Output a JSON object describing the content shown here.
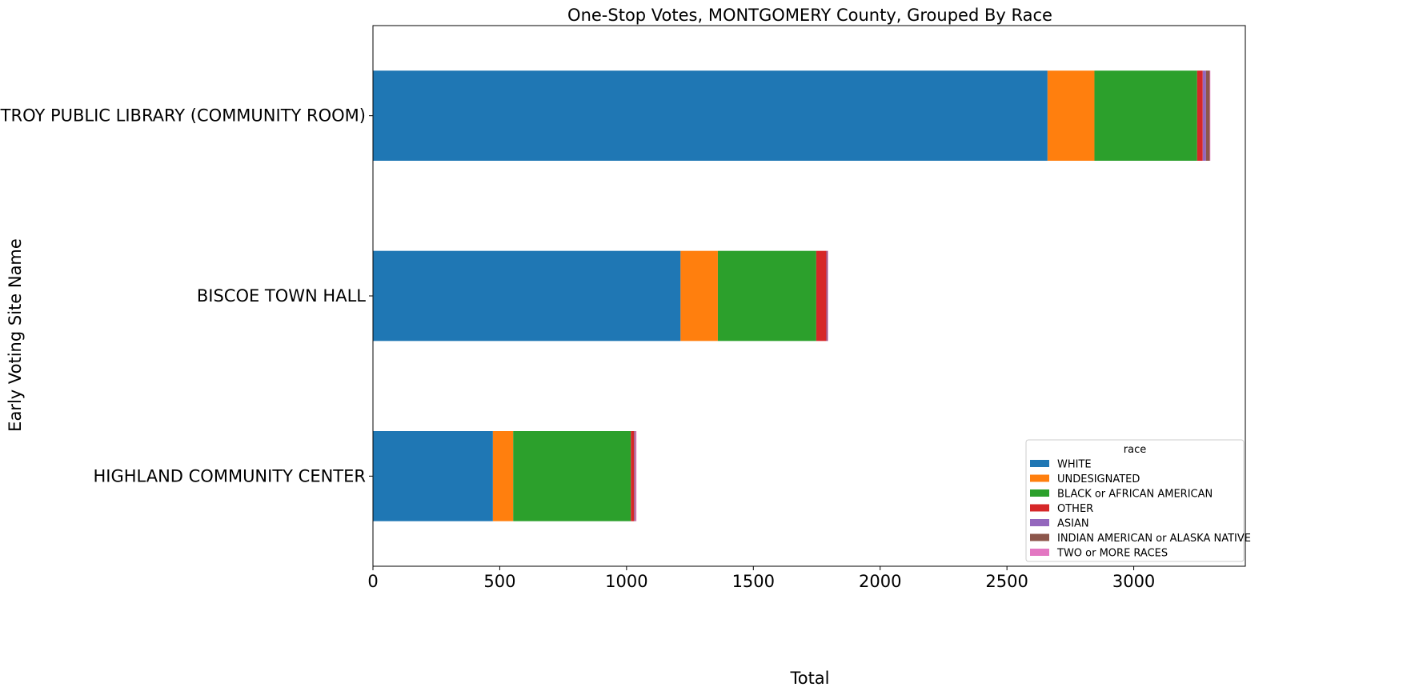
{
  "chart_data": {
    "type": "bar",
    "orientation": "horizontal",
    "stacked": true,
    "title": "One-Stop Votes, MONTGOMERY County, Grouped By Race",
    "xlabel": "Total",
    "ylabel": "Early Voting Site Name",
    "xlim": [
      0,
      3440
    ],
    "xticks": [
      0,
      500,
      1000,
      1500,
      2000,
      2500,
      3000
    ],
    "grid": false,
    "legend_title": "race",
    "legend_position": "lower-right",
    "categories": [
      "TROY PUBLIC LIBRARY (COMMUNITY ROOM)",
      "BISCOE TOWN HALL",
      "HIGHLAND COMMUNITY CENTER"
    ],
    "series": [
      {
        "name": "WHITE",
        "color": "#1f77b4",
        "values": [
          2660,
          1213,
          473
        ]
      },
      {
        "name": "UNDESIGNATED",
        "color": "#ff7f0e",
        "values": [
          185,
          147,
          80
        ]
      },
      {
        "name": "BLACK or AFRICAN AMERICAN",
        "color": "#2ca02c",
        "values": [
          405,
          388,
          464
        ]
      },
      {
        "name": "OTHER",
        "color": "#d62728",
        "values": [
          22,
          40,
          13
        ]
      },
      {
        "name": "ASIAN",
        "color": "#9467bd",
        "values": [
          13,
          3,
          3
        ]
      },
      {
        "name": "INDIAN AMERICAN or ALASKA NATIVE",
        "color": "#8c564b",
        "values": [
          15,
          2,
          2
        ]
      },
      {
        "name": "TWO or MORE RACES",
        "color": "#e377c2",
        "values": [
          2,
          2,
          4
        ]
      }
    ]
  }
}
